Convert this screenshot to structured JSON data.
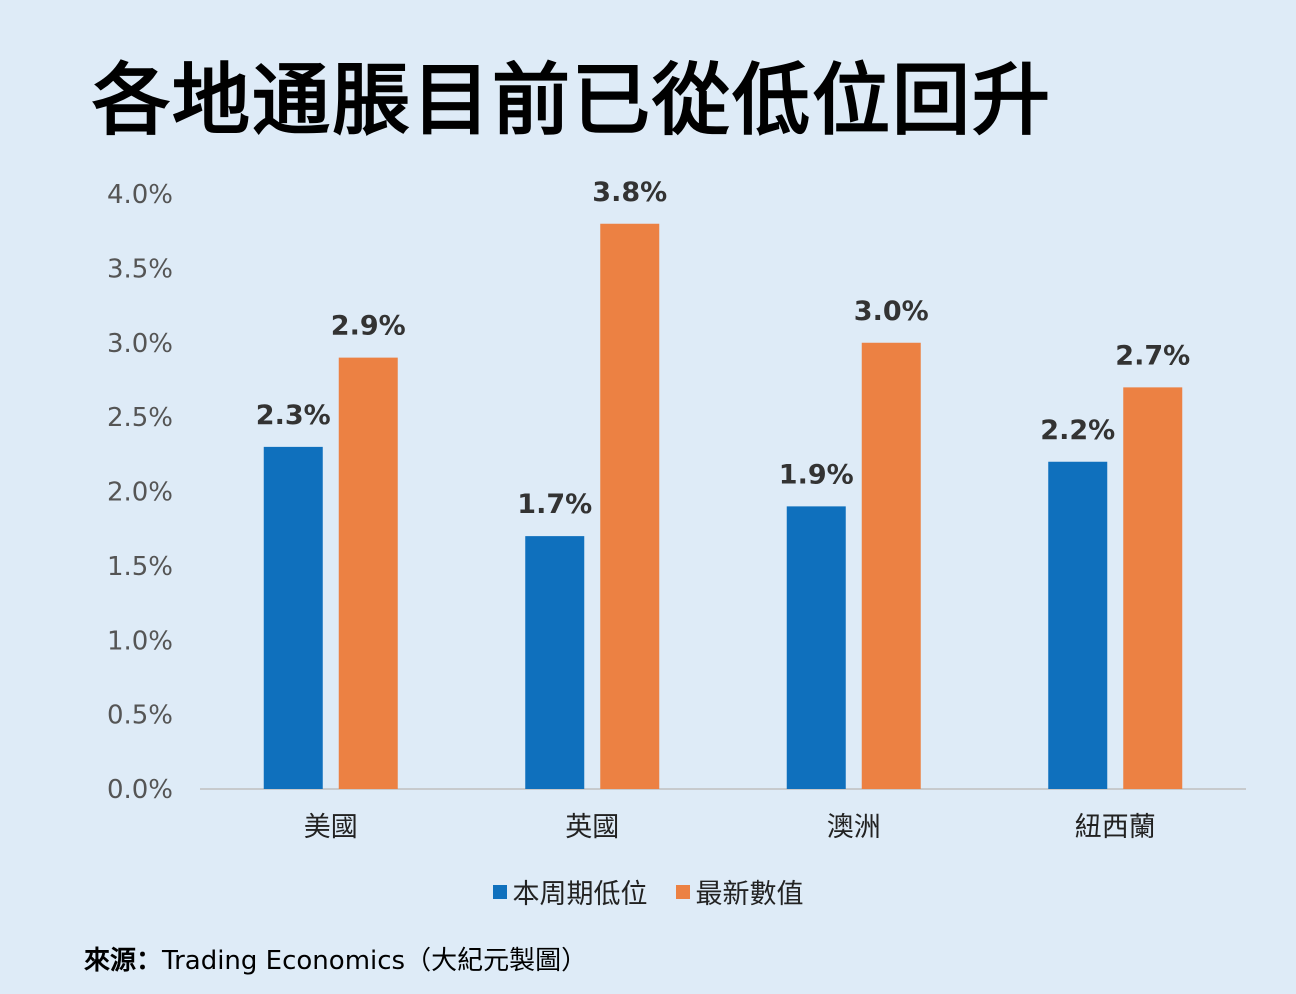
{
  "title": "各地通脹目前已從低位回升",
  "source": {
    "label": "來源：",
    "text": "Trading Economics（大紀元製圖）"
  },
  "colors": {
    "background": "#deebf7",
    "series_low": "#0f70bd",
    "series_latest": "#ec8143",
    "axis": "#bfbfbf",
    "tick_text": "#555555",
    "data_label": "#333333"
  },
  "chart_data": {
    "type": "bar",
    "categories": [
      "美國",
      "英國",
      "澳洲",
      "紐西蘭"
    ],
    "series": [
      {
        "name": "本周期低位",
        "values": [
          2.3,
          1.7,
          1.9,
          2.2
        ],
        "labels": [
          "2.3%",
          "1.7%",
          "1.9%",
          "2.2%"
        ]
      },
      {
        "name": "最新數值",
        "values": [
          2.9,
          3.8,
          3.0,
          2.7
        ],
        "labels": [
          "2.9%",
          "3.8%",
          "3.0%",
          "2.7%"
        ]
      }
    ],
    "yticks": [
      "0.0%",
      "0.5%",
      "1.0%",
      "1.5%",
      "2.0%",
      "2.5%",
      "3.0%",
      "3.5%",
      "4.0%"
    ],
    "ylim": [
      0,
      4
    ],
    "grid": false,
    "legend_position": "bottom"
  }
}
